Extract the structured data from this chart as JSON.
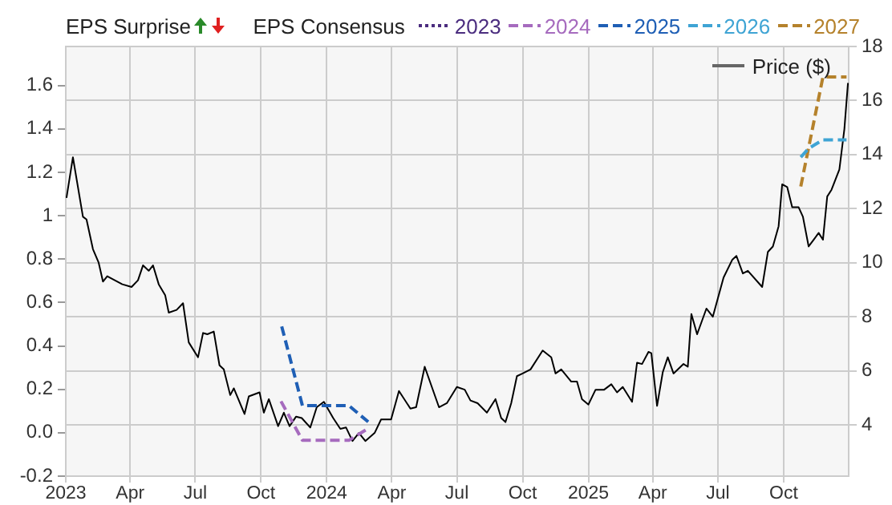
{
  "chart_data": {
    "type": "line",
    "legend_title": "EPS Consensus",
    "annotations": [
      "EPS Surprise"
    ],
    "legend": "top",
    "marker": "none",
    "grid": true,
    "xlim": [
      "2023-01-01",
      "2025-12-31"
    ],
    "xticks": [
      {
        "value": "2023-01-01",
        "label": "2023"
      },
      {
        "value": "2023-04-01",
        "label": "Apr"
      },
      {
        "value": "2023-07-01",
        "label": "Jul"
      },
      {
        "value": "2023-10-01",
        "label": "Oct"
      },
      {
        "value": "2024-01-01",
        "label": "2024"
      },
      {
        "value": "2024-04-01",
        "label": "Apr"
      },
      {
        "value": "2024-07-01",
        "label": "Jul"
      },
      {
        "value": "2024-10-01",
        "label": "Oct"
      },
      {
        "value": "2025-01-01",
        "label": "2025"
      },
      {
        "value": "2025-04-01",
        "label": "Apr"
      },
      {
        "value": "2025-07-01",
        "label": "Jul"
      },
      {
        "value": "2025-10-01",
        "label": "Oct"
      }
    ],
    "ylim": [
      -0.2,
      1.78
    ],
    "yticks": [
      -0.2,
      {
        "value": 0,
        "label": "0.0"
      },
      0.2,
      0.4,
      0.6,
      0.8,
      1,
      1.2,
      1.4,
      1.6
    ],
    "y2lim": [
      2.1,
      18
    ],
    "y2ticks": [
      4,
      6,
      8,
      10,
      12,
      14,
      16,
      18
    ],
    "series": [
      {
        "name": "2023",
        "color": "#4b2d7f",
        "line_style": "dotted"
      },
      {
        "name": "2024",
        "color": "#a66bbe",
        "line_style": "dashed",
        "x": [
          "2023-10-29",
          "2023-11-28",
          "2024-02-01",
          "2024-02-28"
        ],
        "values": [
          0.145,
          -0.035,
          -0.035,
          0.02
        ]
      },
      {
        "name": "2025",
        "color": "#1f5fb5",
        "line_style": "dashed",
        "x": [
          "2023-10-30",
          "2023-11-28",
          "2024-02-01",
          "2024-02-28"
        ],
        "values": [
          0.49,
          0.125,
          0.125,
          0.05
        ]
      },
      {
        "name": "2026",
        "color": "#3fa4d4",
        "line_style": "dashed",
        "x": [
          "2025-10-25",
          "2025-11-05",
          "2025-11-25",
          "2025-12-28"
        ],
        "values": [
          1.27,
          1.31,
          1.35,
          1.35
        ]
      },
      {
        "name": "2027",
        "color": "#b5822c",
        "line_style": "dashed",
        "x": [
          "2025-10-25",
          "2025-11-25",
          "2025-12-28"
        ],
        "values": [
          1.135,
          1.64,
          1.64
        ]
      },
      {
        "name": "Price ($)",
        "color": "#000000",
        "line_style": "solid",
        "axis": "y2",
        "x": [
          "2023-01-02",
          "2023-01-11",
          "2023-01-25",
          "2023-01-30",
          "2023-02-08",
          "2023-02-16",
          "2023-02-22",
          "2023-02-28",
          "2023-03-21",
          "2023-04-03",
          "2023-04-12",
          "2023-04-19",
          "2023-04-27",
          "2023-05-03",
          "2023-05-11",
          "2023-05-20",
          "2023-05-25",
          "2023-06-05",
          "2023-06-14",
          "2023-06-22",
          "2023-07-05",
          "2023-07-12",
          "2023-07-18",
          "2023-07-27",
          "2023-08-04",
          "2023-08-10",
          "2023-08-19",
          "2023-08-24",
          "2023-09-08",
          "2023-09-14",
          "2023-09-29",
          "2023-10-05",
          "2023-10-12",
          "2023-10-25",
          "2023-11-02",
          "2023-11-10",
          "2023-11-19",
          "2023-11-27",
          "2023-12-09",
          "2023-12-18",
          "2023-12-28",
          "2024-01-10",
          "2024-01-20",
          "2024-01-28",
          "2024-02-06",
          "2024-02-15",
          "2024-02-24",
          "2024-03-08",
          "2024-03-17",
          "2024-03-31",
          "2024-04-11",
          "2024-04-27",
          "2024-05-05",
          "2024-05-17",
          "2024-06-06",
          "2024-06-17",
          "2024-07-01",
          "2024-07-12",
          "2024-07-20",
          "2024-07-30",
          "2024-08-12",
          "2024-08-24",
          "2024-09-01",
          "2024-09-07",
          "2024-09-15",
          "2024-09-23",
          "2024-10-01",
          "2024-10-12",
          "2024-10-29",
          "2024-11-10",
          "2024-11-16",
          "2024-11-24",
          "2024-12-08",
          "2024-12-16",
          "2024-12-23",
          "2025-01-01",
          "2025-01-11",
          "2025-01-23",
          "2025-02-02",
          "2025-02-10",
          "2025-02-18",
          "2025-03-03",
          "2025-03-10",
          "2025-03-17",
          "2025-03-26",
          "2025-03-30",
          "2025-04-07",
          "2025-04-15",
          "2025-04-22",
          "2025-04-30",
          "2025-05-14",
          "2025-05-20",
          "2025-05-25",
          "2025-06-02",
          "2025-06-15",
          "2025-06-24",
          "2025-07-09",
          "2025-07-21",
          "2025-07-27",
          "2025-08-05",
          "2025-08-12",
          "2025-09-01",
          "2025-09-09",
          "2025-09-16",
          "2025-09-24",
          "2025-09-29",
          "2025-10-06",
          "2025-10-13",
          "2025-10-22",
          "2025-10-28",
          "2025-11-05",
          "2025-11-12",
          "2025-11-19",
          "2025-11-25",
          "2025-12-01",
          "2025-12-07",
          "2025-12-18",
          "2025-12-25",
          "2025-12-30"
        ],
        "values": [
          12.4,
          13.9,
          11.7,
          11.6,
          10.5,
          10.0,
          9.3,
          9.5,
          9.2,
          9.1,
          9.35,
          9.9,
          9.7,
          9.9,
          9.2,
          8.8,
          8.15,
          8.25,
          8.5,
          7.05,
          6.5,
          7.4,
          7.35,
          7.45,
          6.2,
          6.05,
          5.1,
          5.35,
          4.4,
          5.05,
          5.2,
          4.45,
          4.95,
          3.95,
          4.45,
          3.95,
          4.3,
          4.25,
          3.9,
          4.65,
          4.85,
          4.25,
          3.85,
          3.9,
          3.4,
          3.7,
          3.4,
          3.7,
          4.2,
          4.2,
          5.25,
          4.6,
          4.65,
          6.15,
          4.65,
          4.8,
          5.4,
          5.3,
          4.9,
          4.8,
          4.45,
          4.95,
          4.25,
          4.1,
          4.8,
          5.8,
          5.9,
          6.05,
          6.75,
          6.5,
          5.9,
          6.05,
          5.6,
          5.6,
          4.95,
          4.75,
          5.3,
          5.3,
          5.5,
          5.2,
          5.4,
          4.85,
          6.3,
          6.25,
          6.7,
          6.65,
          4.7,
          5.95,
          6.5,
          5.9,
          6.25,
          6.15,
          8.1,
          7.35,
          8.3,
          8.0,
          9.45,
          10.1,
          10.25,
          9.6,
          9.7,
          9.1,
          10.4,
          10.6,
          11.35,
          12.9,
          12.8,
          12.05,
          12.05,
          11.7,
          10.6,
          10.85,
          11.1,
          10.85,
          12.45,
          12.7,
          13.45,
          14.95,
          16.65
        ]
      }
    ]
  }
}
